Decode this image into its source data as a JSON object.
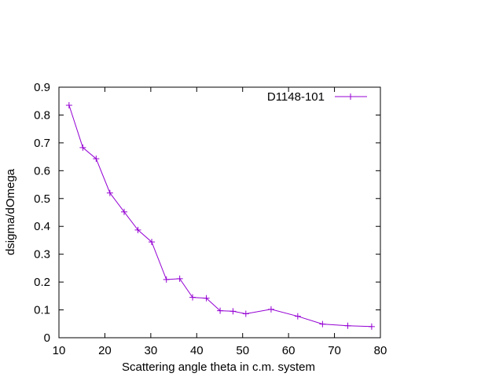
{
  "chart_data": {
    "type": "line",
    "xlabel": "Scattering angle theta in c.m. system",
    "ylabel": "dsigma/dOmega",
    "xlim": [
      10,
      80
    ],
    "ylim": [
      0,
      0.9
    ],
    "xticks": [
      "10",
      "20",
      "30",
      "40",
      "50",
      "60",
      "70",
      "80"
    ],
    "yticks": [
      "0",
      "0.1",
      "0.2",
      "0.3",
      "0.4",
      "0.5",
      "0.6",
      "0.7",
      "0.8",
      "0.9"
    ],
    "grid": false,
    "legend_position": "top-right",
    "series": [
      {
        "name": "D1148-101",
        "color": "#9400d3",
        "marker": "plus",
        "x": [
          12.2,
          15.2,
          18.1,
          21.1,
          24.2,
          27.2,
          30.2,
          33.4,
          36.3,
          39.1,
          42.1,
          45.1,
          47.9,
          50.7,
          56.2,
          62.0,
          67.4,
          72.9,
          78.1
        ],
        "y": [
          0.835,
          0.683,
          0.643,
          0.52,
          0.452,
          0.387,
          0.344,
          0.209,
          0.212,
          0.145,
          0.142,
          0.097,
          0.095,
          0.086,
          0.102,
          0.077,
          0.049,
          0.043,
          0.04
        ]
      }
    ]
  }
}
